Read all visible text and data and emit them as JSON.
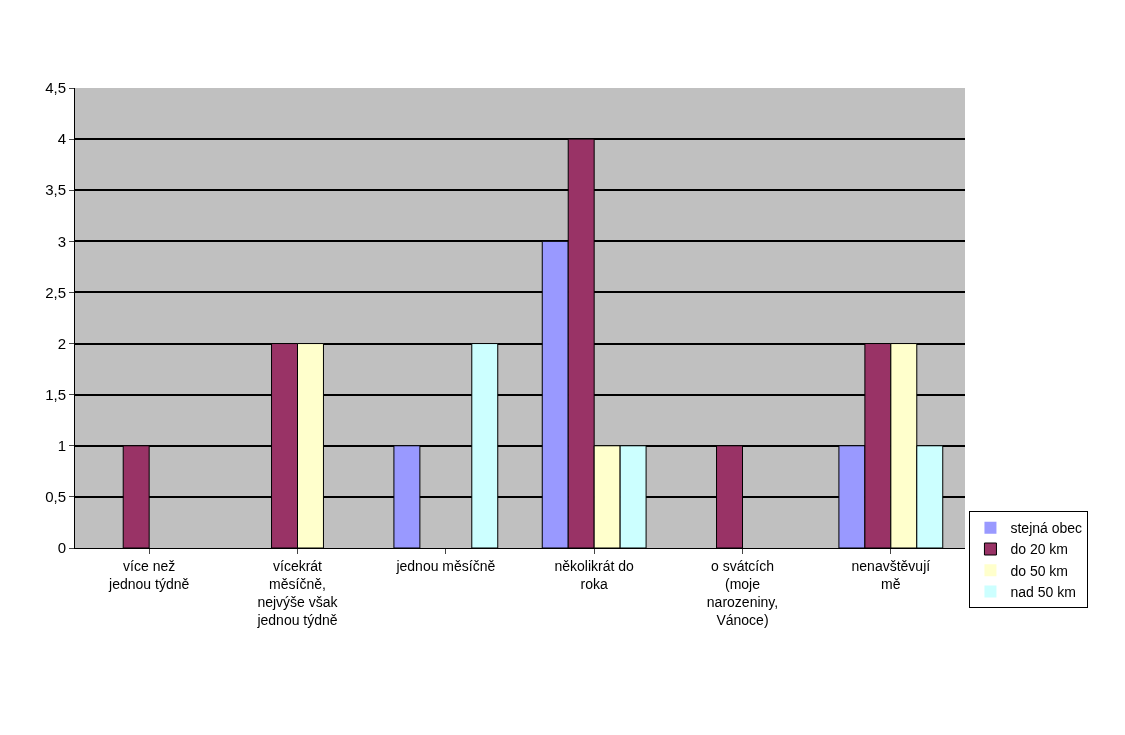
{
  "chart_data": {
    "type": "bar",
    "categories": [
      "více než jednou týdně",
      "vícekrát měsíčně, nejvýše však jednou týdně",
      "jednou měsíčně",
      "několikrát do roka",
      "o svátcích (moje narozeniny, Vánoce)",
      "nenavštěvují mě"
    ],
    "series": [
      {
        "name": "stejná obec",
        "color": "#9999ff",
        "values": [
          0,
          0,
          1,
          3,
          0,
          1
        ]
      },
      {
        "name": "do 20 km",
        "color": "#993366",
        "values": [
          1,
          2,
          0,
          4,
          1,
          2
        ]
      },
      {
        "name": "do 50 km",
        "color": "#ffffcc",
        "values": [
          0,
          2,
          0,
          1,
          0,
          2
        ]
      },
      {
        "name": "nad 50 km",
        "color": "#ccffff",
        "values": [
          0,
          0,
          2,
          1,
          0,
          1
        ]
      }
    ],
    "ylim": [
      0,
      4.5
    ],
    "yticks": [
      0,
      {
        "value": 0.5,
        "label": "0,5"
      },
      1,
      {
        "value": 1.5,
        "label": "1,5"
      },
      2,
      {
        "value": 2.5,
        "label": "2,5"
      },
      3,
      {
        "value": 3.5,
        "label": "3,5"
      },
      4,
      {
        "value": 4.5,
        "label": "4,5"
      }
    ],
    "grid": "y",
    "legend": "bottom right"
  }
}
